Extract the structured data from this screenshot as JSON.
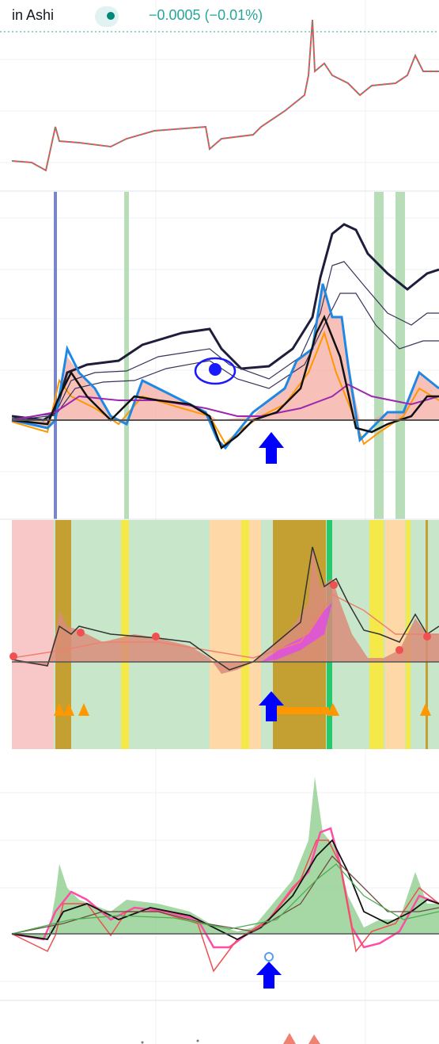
{
  "header": {
    "symbol_suffix": "in Ashi",
    "change": "−0.0005 (−0.01%)"
  }
}
